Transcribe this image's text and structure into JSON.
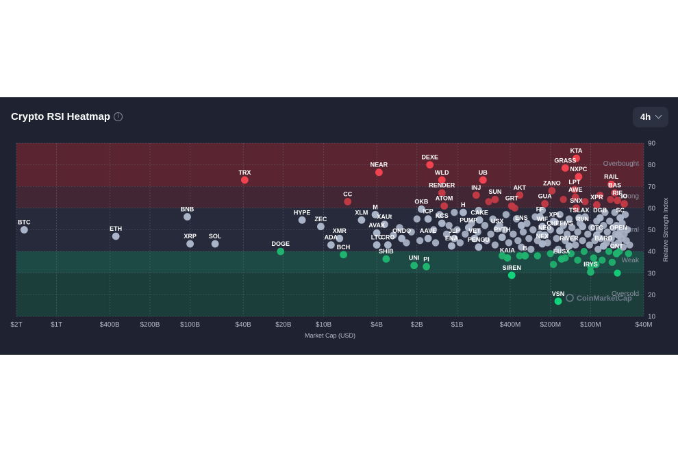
{
  "widget": {
    "title": "Crypto RSI Heatmap",
    "timeframe": "4h",
    "info_icon": "info-circle-icon",
    "dropdown_icon": "chevron-down-icon",
    "watermark": "CoinMarketCap"
  },
  "chart_data": {
    "type": "scatter",
    "title": "Crypto RSI Heatmap",
    "xlabel": "Market Cap (USD)",
    "ylabel": "Relative Strength Index",
    "x_scale": "log",
    "x_direction": "descending",
    "x_ticks": [
      "$2T",
      "$1T",
      "$400B",
      "$200B",
      "$100B",
      "$40B",
      "$20B",
      "$10B",
      "$4B",
      "$2B",
      "$1B",
      "$400M",
      "$200M",
      "$100M",
      "$40M"
    ],
    "y_ticks": [
      10,
      20,
      30,
      40,
      50,
      60,
      70,
      80,
      90
    ],
    "ylim": [
      10,
      90
    ],
    "grid": true,
    "zones": [
      {
        "name": "Overbought",
        "from": 70,
        "to": 90,
        "color": "#5a2530"
      },
      {
        "name": "Strong",
        "from": 60,
        "to": 70,
        "color": "#432633"
      },
      {
        "name": "Neutral",
        "from": 40,
        "to": 60,
        "color": "#262a3a"
      },
      {
        "name": "Weak",
        "from": 30,
        "to": 40,
        "color": "#1d4a44"
      },
      {
        "name": "Oversold",
        "from": 10,
        "to": 30,
        "color": "#1c3e3b"
      }
    ],
    "zone_labels": [
      "Overbought",
      "Strong",
      "Neutral",
      "Weak",
      "Oversold"
    ],
    "colors": {
      "overbought": "#f0434f",
      "strong": "#c03a45",
      "neutral": "#aab4c8",
      "weak": "#1fb36f",
      "oversold": "#12d37b"
    },
    "points": [
      {
        "label": "BTC",
        "cap": 1750000000000.0,
        "rsi": 50
      },
      {
        "label": "ETH",
        "cap": 360000000000.0,
        "rsi": 47
      },
      {
        "label": "BNB",
        "cap": 105000000000.0,
        "rsi": 56
      },
      {
        "label": "XRP",
        "cap": 100000000000.0,
        "rsi": 43.5
      },
      {
        "label": "SOL",
        "cap": 65000000000.0,
        "rsi": 43.5
      },
      {
        "label": "TRX",
        "cap": 39000000000.0,
        "rsi": 73
      },
      {
        "label": "DOGE",
        "cap": 21000000000.0,
        "rsi": 40
      },
      {
        "label": "HYPE",
        "cap": 14500000000.0,
        "rsi": 54.5
      },
      {
        "label": "ZEC",
        "cap": 10500000000.0,
        "rsi": 51.5
      },
      {
        "label": "XMR",
        "cap": 7600000000.0,
        "rsi": 46
      },
      {
        "label": "ADA",
        "cap": 8800000000.0,
        "rsi": 43
      },
      {
        "label": "BCH",
        "cap": 7100000000.0,
        "rsi": 38.5
      },
      {
        "label": "CC",
        "cap": 6600000000.0,
        "rsi": 63
      },
      {
        "label": "XLM",
        "cap": 5200000000.0,
        "rsi": 54.5
      },
      {
        "label": "M",
        "cap": 4100000000.0,
        "rsi": 57
      },
      {
        "label": "AVAX",
        "cap": 4000000000.0,
        "rsi": 48.5
      },
      {
        "label": "LTC",
        "cap": 4000000000.0,
        "rsi": 43
      },
      {
        "label": "XAUt",
        "cap": 3500000000.0,
        "rsi": 52.5
      },
      {
        "label": "CRO",
        "cap": 3300000000.0,
        "rsi": 43
      },
      {
        "label": "SHIB",
        "cap": 3400000000.0,
        "rsi": 36.5
      },
      {
        "label": "NEAR",
        "cap": 3850000000.0,
        "rsi": 76.5
      },
      {
        "label": "ONDO",
        "cap": 2600000000.0,
        "rsi": 46
      },
      {
        "label": "UNI",
        "cap": 2100000000.0,
        "rsi": 33.5
      },
      {
        "label": "OKB",
        "cap": 1850000000.0,
        "rsi": 59.5
      },
      {
        "label": "ICP",
        "cap": 1650000000.0,
        "rsi": 55
      },
      {
        "label": "DEXE",
        "cap": 1600000000.0,
        "rsi": 80
      },
      {
        "label": "AAVE",
        "cap": 1650000000.0,
        "rsi": 46
      },
      {
        "label": "PI",
        "cap": 1700000000.0,
        "rsi": 33
      },
      {
        "label": "WLD",
        "cap": 1300000000.0,
        "rsi": 73
      },
      {
        "label": "RENDER",
        "cap": 1300000000.0,
        "rsi": 67
      },
      {
        "label": "ATOM",
        "cap": 1250000000.0,
        "rsi": 61
      },
      {
        "label": "KCS",
        "cap": 1300000000.0,
        "rsi": 53
      },
      {
        "label": "JLP",
        "cap": 1050000000.0,
        "rsi": 46
      },
      {
        "label": "ENA",
        "cap": 1100000000.0,
        "rsi": 42.5
      },
      {
        "label": "H",
        "cap": 900000000.0,
        "rsi": 58
      },
      {
        "label": "PUMP",
        "cap": 820000000.0,
        "rsi": 51
      },
      {
        "label": "CAKE",
        "cap": 680000000.0,
        "rsi": 54.5
      },
      {
        "label": "VET",
        "cap": 740000000.0,
        "rsi": 46
      },
      {
        "label": "PENGU",
        "cap": 690000000.0,
        "rsi": 42
      },
      {
        "label": "INJ",
        "cap": 720000000.0,
        "rsi": 66
      },
      {
        "label": "UB",
        "cap": 640000000.0,
        "rsi": 73
      },
      {
        "label": "SUN",
        "cap": 520000000.0,
        "rsi": 64
      },
      {
        "label": "USX",
        "cap": 500000000.0,
        "rsi": 50.5
      },
      {
        "label": "PYTH",
        "cap": 460000000.0,
        "rsi": 46.5
      },
      {
        "label": "KAIA",
        "cap": 420000000.0,
        "rsi": 37
      },
      {
        "label": "SIREN",
        "cap": 390000000.0,
        "rsi": 29
      },
      {
        "label": "GRT",
        "cap": 390000000.0,
        "rsi": 61
      },
      {
        "label": "AKT",
        "cap": 340000000.0,
        "rsi": 66
      },
      {
        "label": "ENS",
        "cap": 330000000.0,
        "rsi": 52
      },
      {
        "label": "B",
        "cap": 310000000.0,
        "rsi": 38
      },
      {
        "label": "GUA",
        "cap": 220000000.0,
        "rsi": 62
      },
      {
        "label": "FF",
        "cap": 240000000.0,
        "rsi": 56
      },
      {
        "label": "WIF",
        "cap": 230000000.0,
        "rsi": 51.5
      },
      {
        "label": "NEO",
        "cap": 220000000.0,
        "rsi": 47.5
      },
      {
        "label": "NEX",
        "cap": 230000000.0,
        "rsi": 43.5
      },
      {
        "label": "ZANO",
        "cap": 195000000.0,
        "rsi": 68
      },
      {
        "label": "XPL",
        "cap": 185000000.0,
        "rsi": 53.5
      },
      {
        "label": "CHEEMS",
        "cap": 170000000.0,
        "rsi": 49.5
      },
      {
        "label": "EUSX",
        "cap": 165000000.0,
        "rsi": 36.5
      },
      {
        "label": "RIVER",
        "cap": 145000000.0,
        "rsi": 42.5
      },
      {
        "label": "VSN",
        "cap": 175000000.0,
        "rsi": 17
      },
      {
        "label": "GRASS",
        "cap": 155000000.0,
        "rsi": 78.5
      },
      {
        "label": "KTA",
        "cap": 128000000.0,
        "rsi": 83
      },
      {
        "label": "NXPC",
        "cap": 123000000.0,
        "rsi": 74.5
      },
      {
        "label": "LPT",
        "cap": 132000000.0,
        "rsi": 68.5
      },
      {
        "label": "AWE",
        "cap": 130000000.0,
        "rsi": 65
      },
      {
        "label": "SNX",
        "cap": 128000000.0,
        "rsi": 60
      },
      {
        "label": "TSLAX",
        "cap": 122000000.0,
        "rsi": 55.5
      },
      {
        "label": "RVN",
        "cap": 115000000.0,
        "rsi": 51.5
      },
      {
        "label": "IRYS",
        "cap": 100000000.0,
        "rsi": 30.5
      },
      {
        "label": "XPR",
        "cap": 90000000.0,
        "rsi": 61.5
      },
      {
        "label": "CTC",
        "cap": 90000000.0,
        "rsi": 47.5
      },
      {
        "label": "BARD",
        "cap": 80000000.0,
        "rsi": 42.5
      },
      {
        "label": "DGB",
        "cap": 85000000.0,
        "rsi": 55.5
      },
      {
        "label": "RAIL",
        "cap": 70000000.0,
        "rsi": 71
      },
      {
        "label": "BAS",
        "cap": 66000000.0,
        "rsi": 67
      },
      {
        "label": "RIF",
        "cap": 63000000.0,
        "rsi": 63.5
      },
      {
        "label": "IO",
        "cap": 56000000.0,
        "rsi": 62
      },
      {
        "label": "SC",
        "cap": 60000000.0,
        "rsi": 55.5
      },
      {
        "label": "OPEN",
        "cap": 62000000.0,
        "rsi": 47.5
      },
      {
        "label": "ONT",
        "cap": 64000000.0,
        "rsi": 39
      }
    ],
    "unlabeled_points": [
      {
        "cap": 3000000000.0,
        "rsi": 47.5
      },
      {
        "cap": 2700000000.0,
        "rsi": 51
      },
      {
        "cap": 2400000000.0,
        "rsi": 44
      },
      {
        "cap": 2200000000.0,
        "rsi": 49
      },
      {
        "cap": 2000000000.0,
        "rsi": 55
      },
      {
        "cap": 1900000000.0,
        "rsi": 45
      },
      {
        "cap": 1500000000.0,
        "rsi": 50
      },
      {
        "cap": 1450000000.0,
        "rsi": 44
      },
      {
        "cap": 1350000000.0,
        "rsi": 57
      },
      {
        "cap": 1200000000.0,
        "rsi": 48
      },
      {
        "cap": 1150000000.0,
        "rsi": 52
      },
      {
        "cap": 1000000000.0,
        "rsi": 50
      },
      {
        "cap": 950000000.0,
        "rsi": 44
      },
      {
        "cap": 870000000.0,
        "rsi": 48
      },
      {
        "cap": 780000000.0,
        "rsi": 53
      },
      {
        "cap": 700000000.0,
        "rsi": 49
      },
      {
        "cap": 620000000.0,
        "rsi": 52
      },
      {
        "cap": 600000000.0,
        "rsi": 45
      },
      {
        "cap": 560000000.0,
        "rsi": 48
      },
      {
        "cap": 540000000.0,
        "rsi": 55
      },
      {
        "cap": 520000000.0,
        "rsi": 43
      },
      {
        "cap": 480000000.0,
        "rsi": 52
      },
      {
        "cap": 440000000.0,
        "rsi": 50
      },
      {
        "cap": 430000000.0,
        "rsi": 57
      },
      {
        "cap": 410000000.0,
        "rsi": 44
      },
      {
        "cap": 380000000.0,
        "rsi": 48
      },
      {
        "cap": 360000000.0,
        "rsi": 55
      },
      {
        "cap": 350000000.0,
        "rsi": 45
      },
      {
        "cap": 330000000.0,
        "rsi": 42
      },
      {
        "cap": 320000000.0,
        "rsi": 49
      },
      {
        "cap": 300000000.0,
        "rsi": 53
      },
      {
        "cap": 290000000.0,
        "rsi": 46
      },
      {
        "cap": 280000000.0,
        "rsi": 41
      },
      {
        "cap": 270000000.0,
        "rsi": 50
      },
      {
        "cap": 260000000.0,
        "rsi": 56
      },
      {
        "cap": 250000000.0,
        "rsi": 45
      },
      {
        "cap": 240000000.0,
        "rsi": 48
      },
      {
        "cap": 210000000.0,
        "rsi": 44
      },
      {
        "cap": 200000000.0,
        "rsi": 50
      },
      {
        "cap": 200000000.0,
        "rsi": 39
      },
      {
        "cap": 190000000.0,
        "rsi": 54
      },
      {
        "cap": 180000000.0,
        "rsi": 46
      },
      {
        "cap": 175000000.0,
        "rsi": 41
      },
      {
        "cap": 170000000.0,
        "rsi": 57
      },
      {
        "cap": 160000000.0,
        "rsi": 52
      },
      {
        "cap": 155000000.0,
        "rsi": 45
      },
      {
        "cap": 150000000.0,
        "rsi": 48
      },
      {
        "cap": 145000000.0,
        "rsi": 55
      },
      {
        "cap": 140000000.0,
        "rsi": 39
      },
      {
        "cap": 138000000.0,
        "rsi": 51
      },
      {
        "cap": 135000000.0,
        "rsi": 46
      },
      {
        "cap": 130000000.0,
        "rsi": 43
      },
      {
        "cap": 125000000.0,
        "rsi": 49
      },
      {
        "cap": 120000000.0,
        "rsi": 53
      },
      {
        "cap": 115000000.0,
        "rsi": 45
      },
      {
        "cap": 112000000.0,
        "rsi": 40
      },
      {
        "cap": 110000000.0,
        "rsi": 56
      },
      {
        "cap": 105000000.0,
        "rsi": 48
      },
      {
        "cap": 102000000.0,
        "rsi": 43
      },
      {
        "cap": 98000000.0,
        "rsi": 51
      },
      {
        "cap": 95000000.0,
        "rsi": 37
      },
      {
        "cap": 93000000.0,
        "rsi": 45
      },
      {
        "cap": 90000000.0,
        "rsi": 54
      },
      {
        "cap": 88000000.0,
        "rsi": 41
      },
      {
        "cap": 86000000.0,
        "rsi": 50
      },
      {
        "cap": 84000000.0,
        "rsi": 46
      },
      {
        "cap": 82000000.0,
        "rsi": 36
      },
      {
        "cap": 80000000.0,
        "rsi": 52
      },
      {
        "cap": 78000000.0,
        "rsi": 58
      },
      {
        "cap": 76000000.0,
        "rsi": 44
      },
      {
        "cap": 75000000.0,
        "rsi": 49
      },
      {
        "cap": 73000000.0,
        "rsi": 40
      },
      {
        "cap": 72000000.0,
        "rsi": 54
      },
      {
        "cap": 70000000.0,
        "rsi": 46
      },
      {
        "cap": 69000000.0,
        "rsi": 35
      },
      {
        "cap": 68000000.0,
        "rsi": 51
      },
      {
        "cap": 67000000.0,
        "rsi": 43
      },
      {
        "cap": 66000000.0,
        "rsi": 58
      },
      {
        "cap": 65000000.0,
        "rsi": 48
      },
      {
        "cap": 64000000.0,
        "rsi": 52
      },
      {
        "cap": 62000000.0,
        "rsi": 44
      },
      {
        "cap": 61000000.0,
        "rsi": 40
      },
      {
        "cap": 60000000.0,
        "rsi": 50
      },
      {
        "cap": 59000000.0,
        "rsi": 46
      },
      {
        "cap": 58000000.0,
        "rsi": 53
      },
      {
        "cap": 57000000.0,
        "rsi": 42
      },
      {
        "cap": 56000000.0,
        "rsi": 48
      },
      {
        "cap": 55000000.0,
        "rsi": 57
      },
      {
        "cap": 54000000.0,
        "rsi": 45
      },
      {
        "cap": 53000000.0,
        "rsi": 50
      },
      {
        "cap": 52000000.0,
        "rsi": 39
      },
      {
        "cap": 51000000.0,
        "rsi": 43
      },
      {
        "cap": 100000000.0,
        "rsi": 33
      },
      {
        "cap": 91000000.0,
        "rsi": 34
      },
      {
        "cap": 63000000.0,
        "rsi": 30
      },
      {
        "cap": 85000000.0,
        "rsi": 66
      },
      {
        "cap": 71000000.0,
        "rsi": 64
      },
      {
        "cap": 110000000.0,
        "rsi": 63
      },
      {
        "cap": 160000000.0,
        "rsi": 64
      },
      {
        "cap": 230000000.0,
        "rsi": 59
      },
      {
        "cap": 370000000.0,
        "rsi": 60
      },
      {
        "cap": 580000000.0,
        "rsi": 63
      },
      {
        "cap": 690000000.0,
        "rsi": 59
      },
      {
        "cap": 1050000000.0,
        "rsi": 58
      },
      {
        "cap": 250000000.0,
        "rsi": 38
      },
      {
        "cap": 340000000.0,
        "rsi": 38
      },
      {
        "cap": 460000000.0,
        "rsi": 38
      },
      {
        "cap": 155000000.0,
        "rsi": 37
      },
      {
        "cap": 125000000.0,
        "rsi": 36
      },
      {
        "cap": 190000000.0,
        "rsi": 34
      }
    ]
  }
}
